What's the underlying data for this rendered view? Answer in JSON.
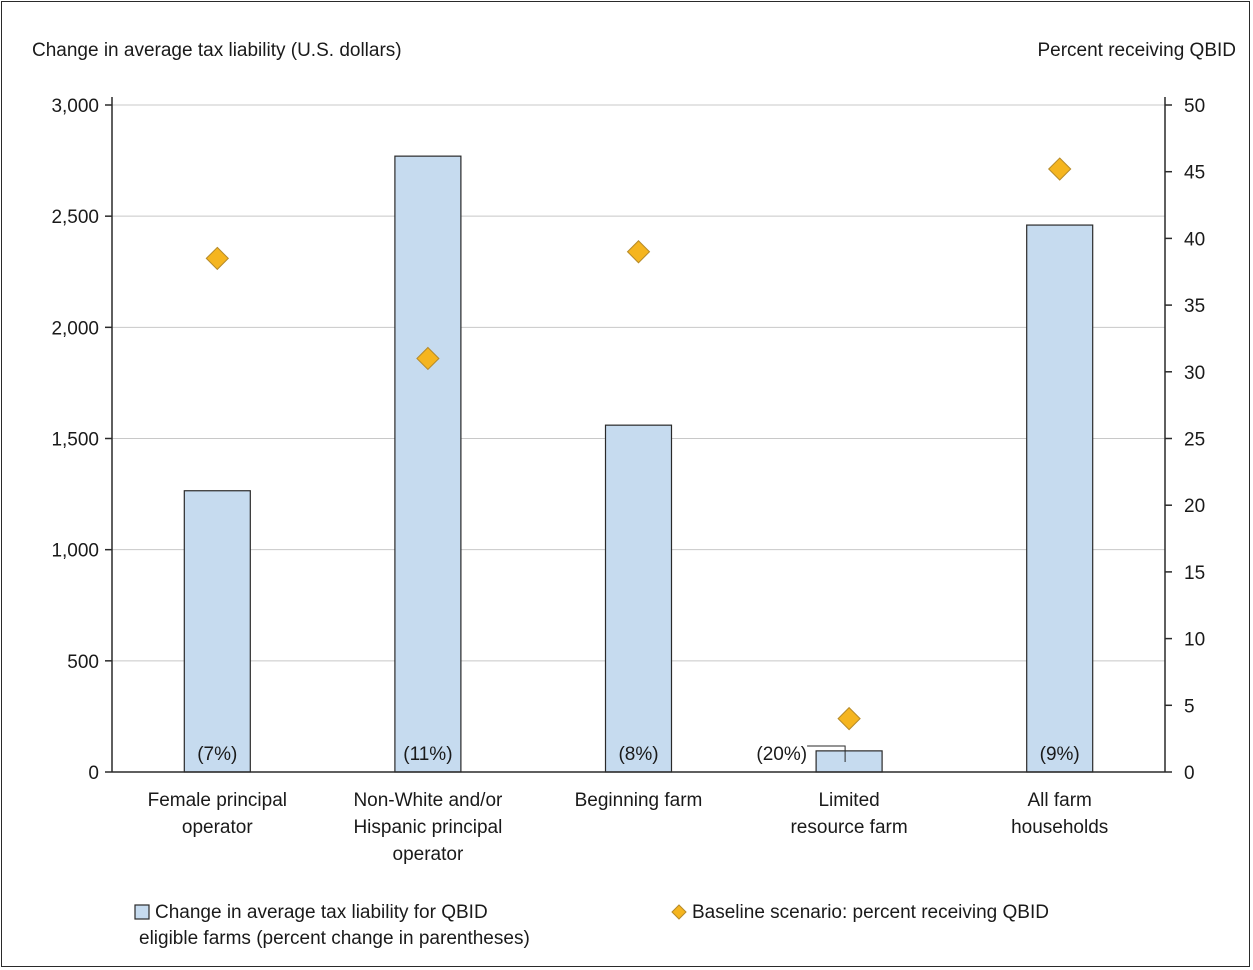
{
  "chart_data": {
    "type": "bar",
    "axis_title_left": "Change in average tax liability (U.S. dollars)",
    "axis_title_right": "Percent receiving QBID",
    "categories": [
      [
        "Female principal",
        "operator"
      ],
      [
        "Non-White and/or",
        "Hispanic principal",
        "operator"
      ],
      [
        "Beginning farm"
      ],
      [
        "Limited",
        "resource farm"
      ],
      [
        "All farm",
        "households"
      ]
    ],
    "left_axis": {
      "min": 0,
      "max": 3000,
      "ticks": [
        0,
        500,
        1000,
        1500,
        2000,
        2500,
        3000
      ],
      "tick_labels": [
        "0",
        "500",
        "1,000",
        "1,500",
        "2,000",
        "2,500",
        "3,000"
      ]
    },
    "right_axis": {
      "min": 0,
      "max": 50,
      "ticks": [
        0,
        5,
        10,
        15,
        20,
        25,
        30,
        35,
        40,
        45,
        50
      ],
      "tick_labels": [
        "0",
        "5",
        "10",
        "15",
        "20",
        "25",
        "30",
        "35",
        "40",
        "45",
        "50"
      ]
    },
    "grid": true,
    "series": [
      {
        "name": "Change in average tax liability for QBID eligible farms (percent change in parentheses)",
        "kind": "bar",
        "axis": "left",
        "color": "#c6dbef",
        "edge": "#2a2a2a",
        "values": [
          1265,
          2770,
          1560,
          95,
          2460
        ],
        "labels": [
          "(7%)",
          "(11%)",
          "(8%)",
          "(20%)",
          "(9%)"
        ]
      },
      {
        "name": "Baseline scenario: percent receiving QBID",
        "kind": "marker",
        "axis": "right",
        "color": "#f5b51f",
        "edge": "#b58a2a",
        "values": [
          38.5,
          31.0,
          39.0,
          4.0,
          45.2
        ]
      }
    ],
    "legend": {
      "position": "bottom",
      "bar_lines": [
        "Change in average tax liability for QBID",
        "eligible farms (percent change in parentheses)"
      ],
      "marker_text": "Baseline scenario: percent receiving QBID"
    }
  }
}
